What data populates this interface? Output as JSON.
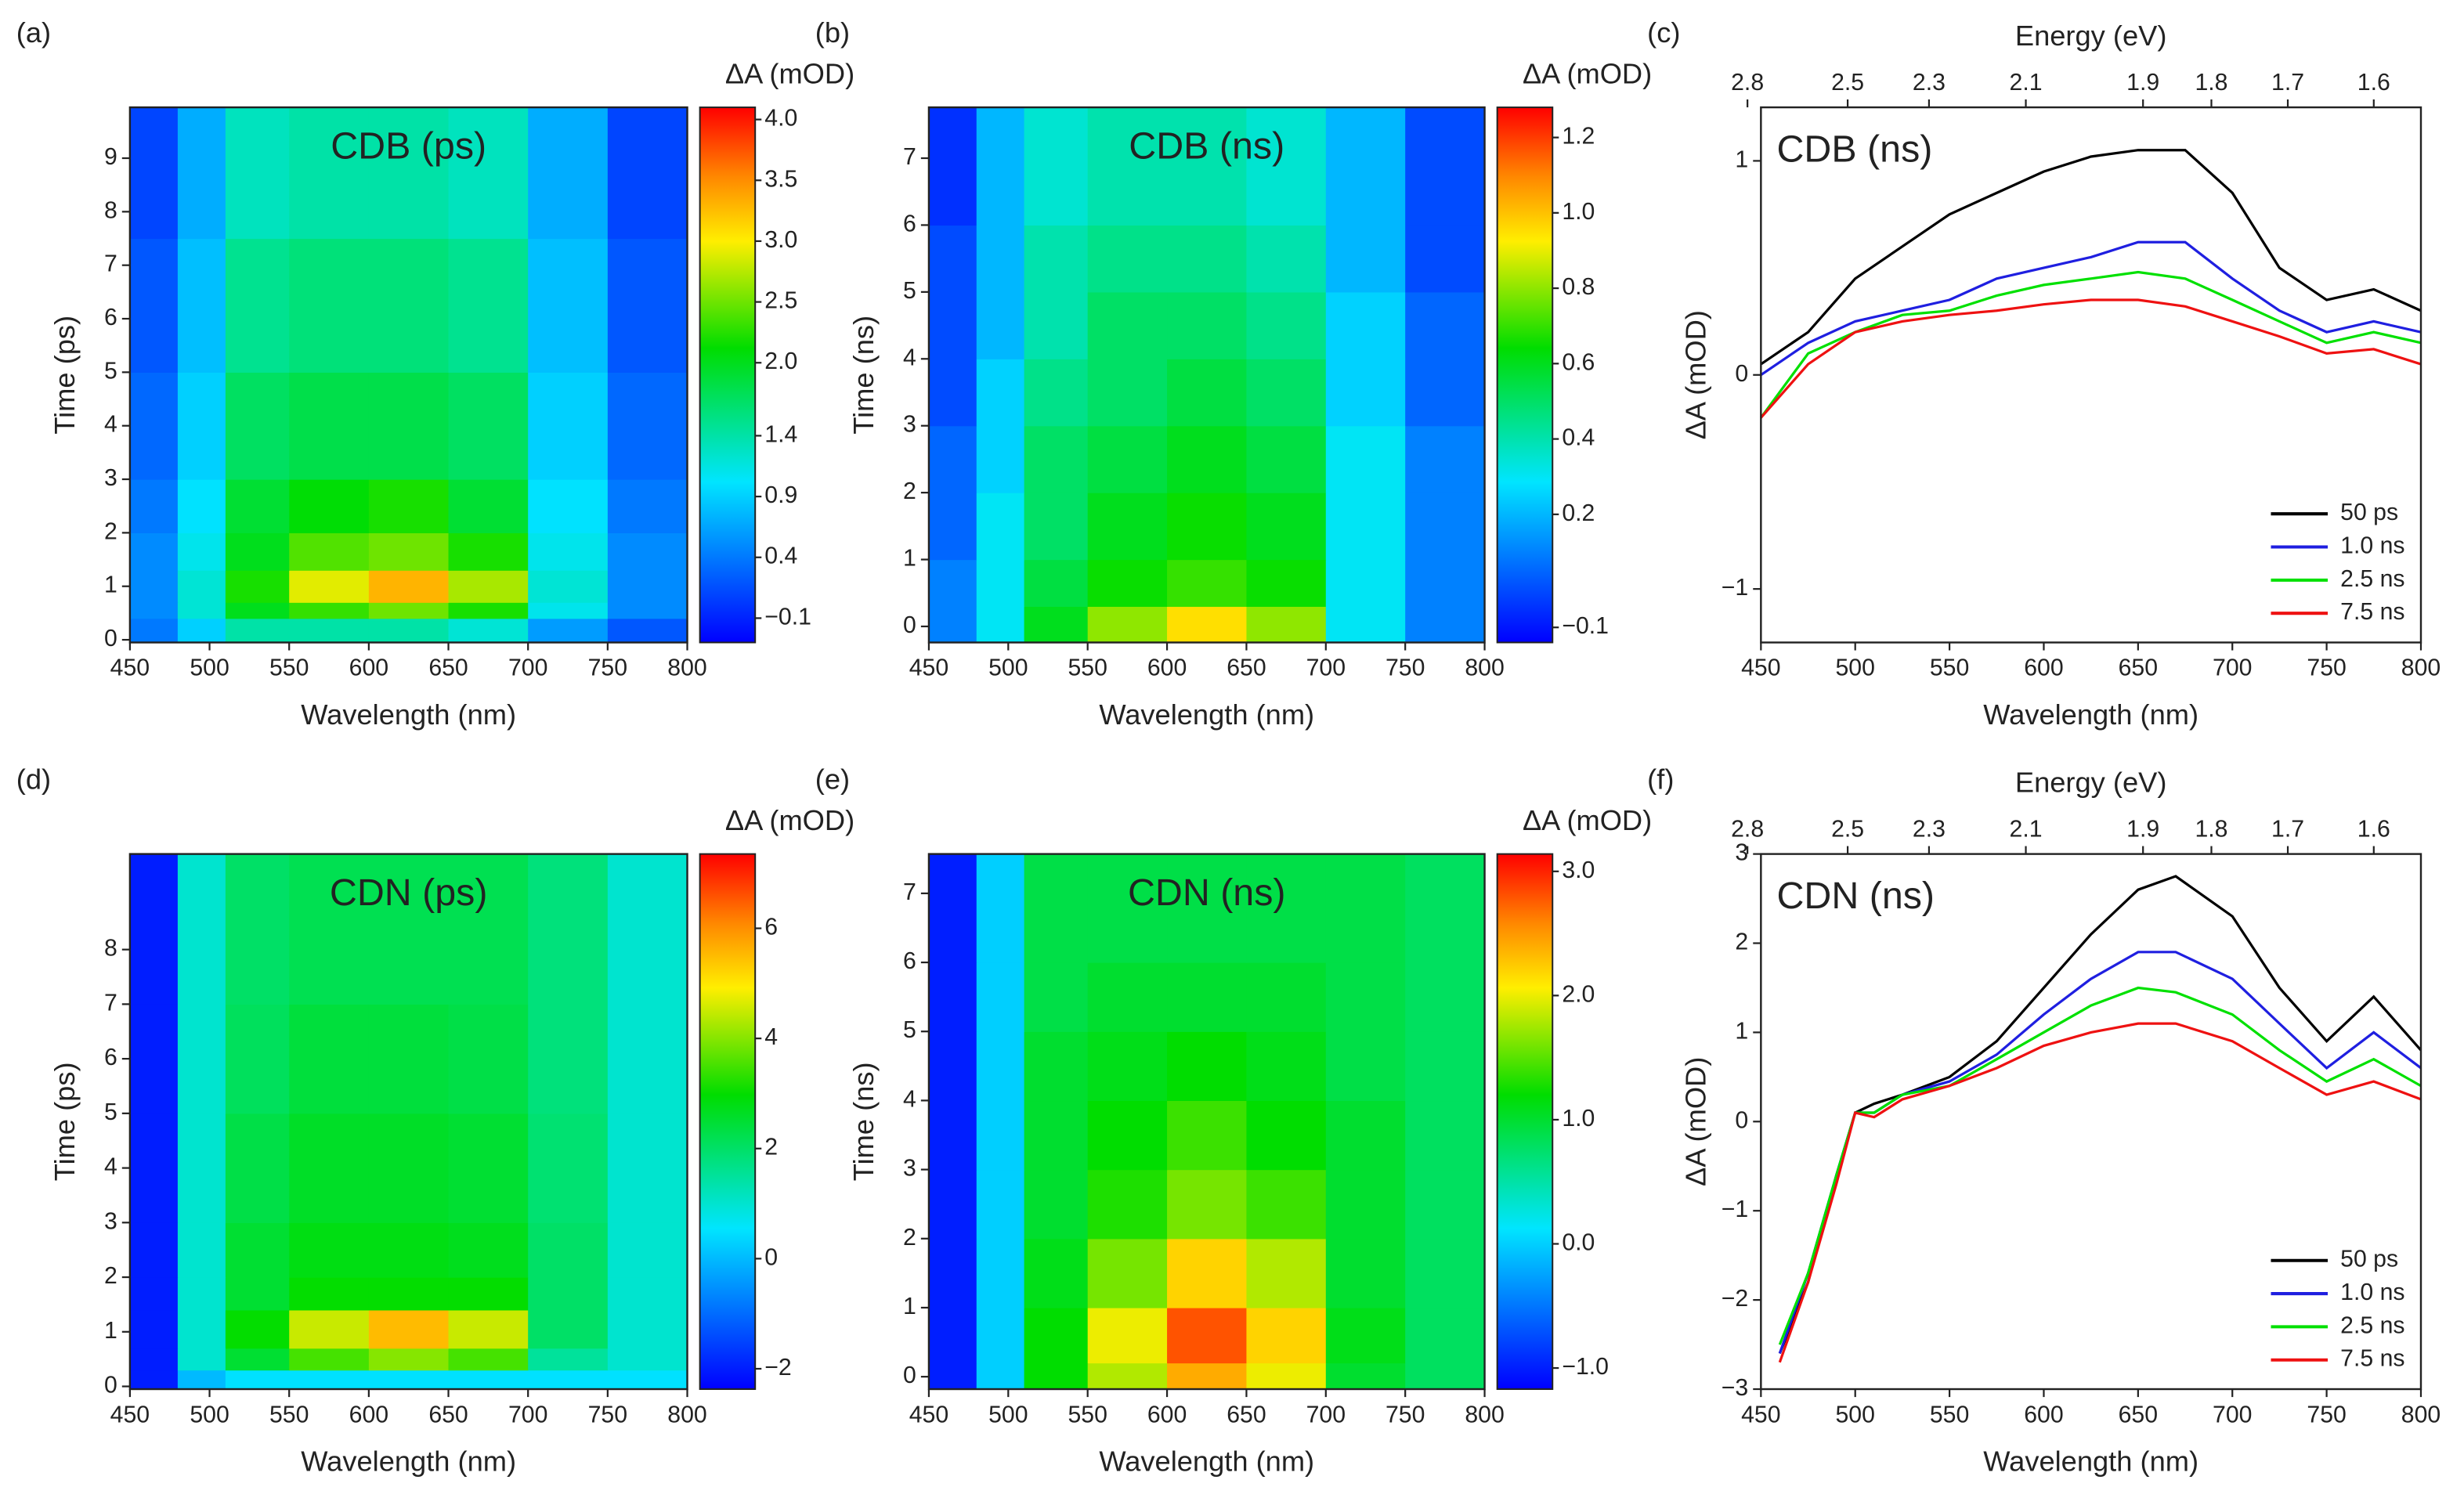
{
  "chart_data": [
    {
      "type": "heatmap",
      "panel_label": "(a)",
      "title": "CDB (ps)",
      "xlabel": "Wavelength (nm)",
      "ylabel": "Time (ps)",
      "colorbar_label": "ΔA (mOD)",
      "xlim": [
        450,
        800
      ],
      "xticks": [
        450,
        500,
        550,
        600,
        650,
        700,
        750,
        800
      ],
      "ylim": [
        -0.05,
        9.95
      ],
      "yticks": [
        0,
        1,
        2,
        3,
        4,
        5,
        6,
        7,
        8,
        9
      ],
      "clim": [
        -0.3,
        4.1
      ],
      "cticks": [
        {
          "value": -0.1,
          "label": "−0.1"
        },
        0.4,
        0.9,
        1.4,
        {
          "value": 2,
          "label": "2.0"
        },
        2.5,
        {
          "value": 3,
          "label": "3.0"
        },
        3.5,
        {
          "value": 4,
          "label": "4.0"
        }
      ],
      "x_edges": [
        450,
        480,
        510,
        550,
        600,
        650,
        700,
        750,
        800
      ],
      "y_edges": [
        -0.05,
        0.4,
        0.7,
        1.3,
        2,
        3,
        5,
        7.5,
        9.95
      ],
      "z": [
        [
          0.4,
          0.9,
          1.4,
          1.4,
          1.4,
          1.2,
          0.6,
          0.2
        ],
        [
          0.5,
          1.2,
          2.0,
          2.3,
          2.5,
          2.2,
          1.1,
          0.5
        ],
        [
          0.5,
          1.2,
          2.2,
          2.9,
          3.3,
          2.7,
          1.2,
          0.5
        ],
        [
          0.5,
          1.1,
          2.0,
          2.4,
          2.5,
          2.2,
          1.1,
          0.5
        ],
        [
          0.4,
          1.0,
          1.9,
          2.1,
          2.2,
          1.9,
          1.0,
          0.4
        ],
        [
          0.3,
          0.9,
          1.7,
          1.8,
          1.8,
          1.7,
          0.9,
          0.3
        ],
        [
          0.2,
          0.8,
          1.5,
          1.6,
          1.6,
          1.5,
          0.8,
          0.2
        ],
        [
          0.1,
          0.7,
          1.3,
          1.4,
          1.4,
          1.3,
          0.7,
          0.1
        ]
      ]
    },
    {
      "type": "heatmap",
      "panel_label": "(b)",
      "title": "CDB (ns)",
      "xlabel": "Wavelength (nm)",
      "ylabel": "Time (ns)",
      "colorbar_label": "ΔA (mOD)",
      "xlim": [
        450,
        800
      ],
      "xticks": [
        450,
        500,
        550,
        600,
        650,
        700,
        750,
        800
      ],
      "ylim": [
        -0.24,
        7.76
      ],
      "yticks": [
        0,
        1,
        2,
        3,
        4,
        5,
        6,
        7
      ],
      "clim": [
        -0.14,
        1.28
      ],
      "cticks": [
        {
          "value": -0.1,
          "label": "−0.1"
        },
        0.2,
        0.4,
        0.6,
        0.8,
        {
          "value": 1,
          "label": "1.0"
        },
        1.2
      ],
      "x_edges": [
        450,
        480,
        510,
        550,
        600,
        650,
        700,
        750,
        800
      ],
      "y_edges": [
        -0.24,
        0.3,
        1,
        2,
        3,
        4,
        5,
        6,
        7.76
      ],
      "z": [
        [
          0.1,
          0.3,
          0.6,
          0.8,
          0.95,
          0.8,
          0.3,
          0.1
        ],
        [
          0.1,
          0.3,
          0.55,
          0.65,
          0.7,
          0.65,
          0.3,
          0.1
        ],
        [
          0.05,
          0.3,
          0.5,
          0.6,
          0.65,
          0.6,
          0.3,
          0.1
        ],
        [
          0.05,
          0.25,
          0.5,
          0.55,
          0.6,
          0.55,
          0.3,
          0.1
        ],
        [
          0,
          0.25,
          0.45,
          0.5,
          0.55,
          0.5,
          0.25,
          0.05
        ],
        [
          0,
          0.2,
          0.4,
          0.5,
          0.5,
          0.45,
          0.25,
          0.05
        ],
        [
          0,
          0.2,
          0.4,
          0.45,
          0.45,
          0.4,
          0.2,
          0
        ],
        [
          -0.05,
          0.2,
          0.35,
          0.4,
          0.4,
          0.35,
          0.2,
          0
        ]
      ]
    },
    {
      "type": "line",
      "panel_label": "(c)",
      "title": "CDB (ns)",
      "xlabel": "Wavelength (nm)",
      "ylabel": "ΔA (mOD)",
      "x2label": "Energy (eV)",
      "xlim": [
        450,
        800
      ],
      "xticks": [
        450,
        500,
        550,
        600,
        650,
        700,
        750,
        800
      ],
      "x2ticks": [
        2.8,
        2.5,
        2.3,
        2.1,
        1.9,
        1.8,
        1.7,
        1.6
      ],
      "ylim": [
        -1.25,
        1.25
      ],
      "yticks": [
        {
          "value": -1,
          "label": "−1"
        },
        0,
        1
      ],
      "legend_position": "lower right",
      "x": [
        450,
        475,
        500,
        525,
        550,
        575,
        600,
        625,
        650,
        675,
        700,
        725,
        750,
        775,
        800
      ],
      "series": [
        {
          "name": "50 ps",
          "color": "#000000",
          "values": [
            0.05,
            0.2,
            0.45,
            0.6,
            0.75,
            0.85,
            0.95,
            1.02,
            1.05,
            1.05,
            0.85,
            0.5,
            0.35,
            0.4,
            0.3
          ]
        },
        {
          "name": "1.0 ns",
          "color": "#1f1fe0",
          "values": [
            0,
            0.15,
            0.25,
            0.3,
            0.35,
            0.45,
            0.5,
            0.55,
            0.62,
            0.62,
            0.45,
            0.3,
            0.2,
            0.25,
            0.2
          ]
        },
        {
          "name": "2.5 ns",
          "color": "#00e000",
          "values": [
            -0.2,
            0.1,
            0.2,
            0.28,
            0.3,
            0.37,
            0.42,
            0.45,
            0.48,
            0.45,
            0.35,
            0.25,
            0.15,
            0.2,
            0.15
          ]
        },
        {
          "name": "7.5 ns",
          "color": "#ee1111",
          "values": [
            -0.2,
            0.05,
            0.2,
            0.25,
            0.28,
            0.3,
            0.33,
            0.35,
            0.35,
            0.32,
            0.25,
            0.18,
            0.1,
            0.12,
            0.05
          ]
        }
      ]
    },
    {
      "type": "heatmap",
      "panel_label": "(d)",
      "title": "CDN (ps)",
      "xlabel": "Wavelength (nm)",
      "ylabel": "Time (ps)",
      "colorbar_label": "ΔA (mOD)",
      "xlim": [
        450,
        800
      ],
      "xticks": [
        450,
        500,
        550,
        600,
        650,
        700,
        750,
        800
      ],
      "ylim": [
        -0.05,
        9.75
      ],
      "yticks": [
        0,
        1,
        2,
        3,
        4,
        5,
        6,
        7,
        8
      ],
      "clim": [
        -2.37,
        7.35
      ],
      "cticks": [
        {
          "value": -2,
          "label": "−2"
        },
        0,
        2,
        4,
        6
      ],
      "x_edges": [
        450,
        480,
        510,
        550,
        600,
        650,
        700,
        750,
        800
      ],
      "y_edges": [
        -0.05,
        0.3,
        0.7,
        1.4,
        2,
        3,
        5,
        7,
        9.75
      ],
      "z": [
        [
          -2,
          0,
          0.5,
          0.5,
          0.5,
          0.5,
          0.5,
          0.5
        ],
        [
          -2,
          1,
          2.5,
          3.5,
          4,
          3.5,
          1.5,
          1
        ],
        [
          -2,
          1,
          3,
          4.5,
          5.5,
          4.5,
          2,
          1
        ],
        [
          -2,
          1,
          2.5,
          3,
          3,
          3,
          2,
          1
        ],
        [
          -2,
          1,
          2.5,
          2.8,
          2.8,
          2.7,
          2,
          1
        ],
        [
          -2,
          1,
          2.3,
          2.6,
          2.6,
          2.5,
          1.9,
          1
        ],
        [
          -2,
          1,
          2.1,
          2.4,
          2.4,
          2.3,
          1.8,
          1
        ],
        [
          -2,
          1,
          2,
          2.2,
          2.2,
          2.2,
          1.8,
          1
        ]
      ]
    },
    {
      "type": "heatmap",
      "panel_label": "(e)",
      "title": "CDN (ns)",
      "xlabel": "Wavelength (nm)",
      "ylabel": "Time (ns)",
      "colorbar_label": "ΔA (mOD)",
      "xlim": [
        450,
        800
      ],
      "xticks": [
        450,
        500,
        550,
        600,
        650,
        700,
        750,
        800
      ],
      "ylim": [
        -0.18,
        7.57
      ],
      "yticks": [
        0,
        1,
        2,
        3,
        4,
        5,
        6,
        7
      ],
      "clim": [
        -1.17,
        3.14
      ],
      "cticks": [
        {
          "value": -1,
          "label": "−1.0"
        },
        {
          "value": 0,
          "label": "0.0"
        },
        {
          "value": 1,
          "label": "1.0"
        },
        {
          "value": 2,
          "label": "2.0"
        },
        {
          "value": 3,
          "label": "3.0"
        }
      ],
      "x_edges": [
        450,
        480,
        510,
        550,
        600,
        650,
        700,
        750,
        800
      ],
      "y_edges": [
        -0.18,
        0.2,
        1,
        2,
        3,
        4,
        5,
        6,
        7.57
      ],
      "z": [
        [
          -1,
          0,
          1.2,
          1.8,
          2.4,
          2,
          1,
          0.8
        ],
        [
          -1,
          0,
          1.2,
          2,
          2.8,
          2.2,
          1.1,
          0.8
        ],
        [
          -1,
          0,
          1.1,
          1.6,
          2.2,
          1.8,
          1,
          0.8
        ],
        [
          -1,
          0,
          1,
          1.3,
          1.6,
          1.4,
          1,
          0.8
        ],
        [
          -1,
          0,
          1,
          1.2,
          1.4,
          1.2,
          1,
          0.8
        ],
        [
          -1,
          0,
          1,
          1.1,
          1.2,
          1.1,
          0.9,
          0.8
        ],
        [
          -1,
          0,
          0.9,
          1,
          1,
          1,
          0.9,
          0.8
        ],
        [
          -1,
          0,
          0.9,
          0.9,
          0.9,
          0.9,
          0.9,
          0.8
        ]
      ]
    },
    {
      "type": "line",
      "panel_label": "(f)",
      "title": "CDN (ns)",
      "xlabel": "Wavelength (nm)",
      "ylabel": "ΔA (mOD)",
      "x2label": "Energy (eV)",
      "xlim": [
        450,
        800
      ],
      "xticks": [
        450,
        500,
        550,
        600,
        650,
        700,
        750,
        800
      ],
      "x2ticks": [
        2.8,
        2.5,
        2.3,
        2.1,
        1.9,
        1.8,
        1.7,
        1.6
      ],
      "ylim": [
        -3,
        3
      ],
      "yticks": [
        {
          "value": -3,
          "label": "−3"
        },
        {
          "value": -2,
          "label": "−2"
        },
        {
          "value": -1,
          "label": "−1"
        },
        0,
        1,
        2,
        3
      ],
      "legend_position": "lower right",
      "x": [
        460,
        475,
        490,
        500,
        510,
        525,
        550,
        575,
        600,
        625,
        650,
        670,
        700,
        725,
        750,
        775,
        800
      ],
      "series": [
        {
          "name": "50 ps",
          "color": "#000000",
          "values": [
            -2.6,
            -1.8,
            -0.6,
            0.1,
            0.2,
            0.3,
            0.5,
            0.9,
            1.5,
            2.1,
            2.6,
            2.75,
            2.3,
            1.5,
            0.9,
            1.4,
            0.8
          ]
        },
        {
          "name": "1.0 ns",
          "color": "#1f1fe0",
          "values": [
            -2.6,
            -1.7,
            -0.6,
            0.1,
            0.1,
            0.3,
            0.45,
            0.75,
            1.2,
            1.6,
            1.9,
            1.9,
            1.6,
            1.1,
            0.6,
            1.0,
            0.6
          ]
        },
        {
          "name": "2.5 ns",
          "color": "#00e000",
          "values": [
            -2.5,
            -1.7,
            -0.6,
            0.1,
            0.1,
            0.3,
            0.4,
            0.7,
            1.0,
            1.3,
            1.5,
            1.45,
            1.2,
            0.8,
            0.45,
            0.7,
            0.4
          ]
        },
        {
          "name": "7.5 ns",
          "color": "#ee1111",
          "values": [
            -2.7,
            -1.8,
            -0.7,
            0.1,
            0.05,
            0.25,
            0.4,
            0.6,
            0.85,
            1.0,
            1.1,
            1.1,
            0.9,
            0.6,
            0.3,
            0.45,
            0.25
          ]
        }
      ]
    }
  ]
}
